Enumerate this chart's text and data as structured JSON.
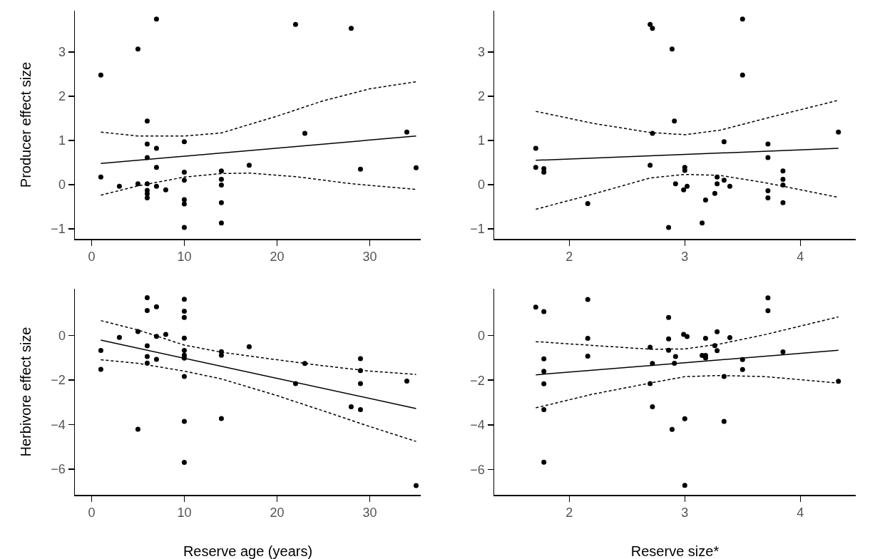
{
  "chart_data": [
    {
      "type": "scatter",
      "ylabel": "Producer effect size",
      "xlim": [
        -1.8,
        35.5
      ],
      "xticks": [
        0,
        10,
        20,
        30
      ],
      "ylim": [
        -1.23,
        3.94
      ],
      "yticks": [
        -1,
        0,
        1,
        2,
        3
      ],
      "series": [
        {
          "marker": "circle",
          "color": "#000000",
          "x": [
            1,
            1,
            3,
            5,
            5,
            6,
            6,
            6,
            6,
            6,
            6,
            6,
            7,
            7,
            7,
            7,
            8,
            10,
            10,
            10,
            10,
            10,
            10,
            14,
            14,
            14,
            14,
            14,
            17,
            22,
            23,
            28,
            29,
            34,
            35
          ],
          "values": [
            2.48,
            0.17,
            -0.04,
            3.07,
            0.02,
            1.44,
            0.92,
            0.61,
            0.02,
            -0.13,
            -0.21,
            -0.3,
            3.75,
            0.82,
            0.39,
            -0.04,
            -0.12,
            0.97,
            0.28,
            0.1,
            -0.34,
            -0.44,
            -0.97,
            0.31,
            0.12,
            -0.01,
            -0.41,
            -0.87,
            0.44,
            3.63,
            1.16,
            3.54,
            0.35,
            1.19,
            0.38
          ]
        },
        {
          "type": "line",
          "line_style": "solid",
          "color": "#000000",
          "x": [
            1,
            35
          ],
          "values": [
            0.48,
            1.1
          ]
        },
        {
          "type": "line",
          "line_style": "dashed",
          "color": "#000000",
          "x": [
            1,
            5,
            10,
            14,
            20,
            25,
            30,
            35
          ],
          "values": [
            1.19,
            1.1,
            1.1,
            1.17,
            1.55,
            1.9,
            2.17,
            2.33
          ]
        },
        {
          "type": "line",
          "line_style": "dashed",
          "color": "#000000",
          "x": [
            1,
            5,
            10,
            14,
            17,
            22,
            28,
            35
          ],
          "values": [
            -0.24,
            -0.03,
            0.17,
            0.25,
            0.26,
            0.18,
            0.02,
            -0.11
          ]
        }
      ]
    },
    {
      "type": "scatter",
      "xlim": [
        1.35,
        4.48
      ],
      "xticks": [
        2,
        3,
        4
      ],
      "ylim": [
        -1.23,
        3.94
      ],
      "yticks": [
        -1,
        0,
        1,
        2,
        3
      ],
      "series": [
        {
          "marker": "circle",
          "color": "#000000",
          "x": [
            1.71,
            1.71,
            1.78,
            1.78,
            2.16,
            2.7,
            2.72,
            2.7,
            2.72,
            2.89,
            2.91,
            2.86,
            2.92,
            2.99,
            3.0,
            3.0,
            3.02,
            3.15,
            3.18,
            3.26,
            3.28,
            3.28,
            3.34,
            3.34,
            3.39,
            3.5,
            3.5,
            3.72,
            3.72,
            3.72,
            3.72,
            3.85,
            3.85,
            3.85,
            3.85,
            4.33
          ],
          "values": [
            0.82,
            0.39,
            0.36,
            0.28,
            -0.43,
            3.63,
            3.54,
            0.44,
            1.16,
            3.07,
            1.44,
            -0.97,
            0.02,
            -0.12,
            0.39,
            0.32,
            -0.04,
            -0.87,
            -0.35,
            -0.2,
            0.17,
            0.02,
            0.97,
            0.1,
            -0.04,
            3.75,
            2.48,
            0.92,
            0.61,
            -0.14,
            -0.3,
            0.31,
            0.12,
            -0.01,
            -0.41,
            1.19
          ]
        },
        {
          "type": "line",
          "line_style": "solid",
          "color": "#000000",
          "x": [
            1.71,
            4.33
          ],
          "values": [
            0.55,
            0.82
          ]
        },
        {
          "type": "line",
          "line_style": "dashed",
          "color": "#000000",
          "x": [
            1.71,
            2.2,
            2.7,
            3.0,
            3.3,
            3.7,
            4.33
          ],
          "values": [
            1.66,
            1.39,
            1.18,
            1.13,
            1.23,
            1.5,
            1.91
          ]
        },
        {
          "type": "line",
          "line_style": "dashed",
          "color": "#000000",
          "x": [
            1.71,
            2.2,
            2.7,
            3.0,
            3.3,
            3.7,
            4.33
          ],
          "values": [
            -0.56,
            -0.22,
            0.15,
            0.23,
            0.21,
            0.04,
            -0.29
          ]
        }
      ]
    },
    {
      "type": "scatter",
      "ylabel": "Herbivore effect size",
      "xlabel": "Reserve age (years)",
      "xlim": [
        -1.8,
        35.5
      ],
      "xticks": [
        0,
        10,
        20,
        30
      ],
      "ylim": [
        -7.16,
        2.1
      ],
      "yticks": [
        -6,
        -4,
        -2,
        0
      ],
      "series": [
        {
          "marker": "circle",
          "color": "#000000",
          "x": [
            1,
            1,
            3,
            5,
            5,
            6,
            6,
            6,
            6,
            6,
            7,
            7,
            7,
            8,
            10,
            10,
            10,
            10,
            10,
            10,
            10,
            10,
            10,
            10,
            14,
            14,
            14,
            17,
            22,
            23,
            28,
            29,
            29,
            29,
            29,
            34,
            35
          ],
          "values": [
            -0.67,
            -1.52,
            -0.09,
            0.18,
            -4.21,
            1.7,
            1.12,
            -0.46,
            -0.94,
            -1.24,
            1.29,
            -0.04,
            -1.07,
            0.05,
            1.63,
            1.09,
            0.81,
            -0.12,
            -0.67,
            -0.89,
            -1.02,
            -1.84,
            -3.86,
            -5.7,
            -0.73,
            -0.89,
            -3.73,
            -0.5,
            -2.16,
            -1.26,
            -3.2,
            -1.04,
            -1.58,
            -2.16,
            -3.33,
            -2.05,
            -6.74
          ]
        },
        {
          "type": "line",
          "line_style": "solid",
          "color": "#000000",
          "x": [
            1,
            35
          ],
          "values": [
            -0.21,
            -3.28
          ]
        },
        {
          "type": "line",
          "line_style": "dashed",
          "color": "#000000",
          "x": [
            1,
            5,
            10,
            14,
            20,
            25,
            30,
            35
          ],
          "values": [
            0.67,
            0.25,
            -0.43,
            -0.75,
            -1.09,
            -1.36,
            -1.6,
            -1.75
          ]
        },
        {
          "type": "line",
          "line_style": "dashed",
          "color": "#000000",
          "x": [
            1,
            5,
            10,
            14,
            20,
            25,
            30,
            35
          ],
          "values": [
            -1.09,
            -1.25,
            -1.6,
            -1.95,
            -2.7,
            -3.39,
            -4.09,
            -4.76
          ]
        }
      ]
    },
    {
      "type": "scatter",
      "xlabel": "Reserve size*",
      "xlim": [
        1.35,
        4.48
      ],
      "xticks": [
        2,
        3,
        4
      ],
      "ylim": [
        -7.14,
        2.1
      ],
      "yticks": [
        -6,
        -4,
        -2,
        0
      ],
      "series": [
        {
          "marker": "circle",
          "color": "#000000",
          "x": [
            1.71,
            1.78,
            1.78,
            1.78,
            1.78,
            1.78,
            1.78,
            2.16,
            2.16,
            2.16,
            2.7,
            2.7,
            2.72,
            2.72,
            2.86,
            2.86,
            2.86,
            2.89,
            2.91,
            2.92,
            2.99,
            3.0,
            3.0,
            3.02,
            3.15,
            3.18,
            3.18,
            3.18,
            3.26,
            3.28,
            3.28,
            3.34,
            3.34,
            3.39,
            3.5,
            3.5,
            3.72,
            3.72,
            3.85,
            4.33
          ],
          "values": [
            1.28,
            1.08,
            -1.04,
            -1.6,
            -2.16,
            -3.32,
            -5.68,
            1.62,
            -0.12,
            -0.92,
            -0.52,
            -2.15,
            -1.25,
            -3.19,
            0.81,
            -0.15,
            -0.66,
            -4.21,
            -1.24,
            -0.94,
            0.05,
            -3.73,
            -6.72,
            -0.04,
            -0.89,
            -0.12,
            -0.89,
            -1.0,
            -0.45,
            0.17,
            -0.67,
            -1.83,
            -3.85,
            -0.09,
            -1.07,
            -1.52,
            1.69,
            1.12,
            -0.73,
            -2.05
          ]
        },
        {
          "type": "line",
          "line_style": "solid",
          "color": "#000000",
          "x": [
            1.71,
            4.33
          ],
          "values": [
            -1.76,
            -0.66
          ]
        },
        {
          "type": "line",
          "line_style": "dashed",
          "color": "#000000",
          "x": [
            1.71,
            2.2,
            2.7,
            3.0,
            3.3,
            3.7,
            4.33
          ],
          "values": [
            -0.27,
            -0.44,
            -0.61,
            -0.6,
            -0.38,
            0.05,
            0.84
          ]
        },
        {
          "type": "line",
          "line_style": "dashed",
          "color": "#000000",
          "x": [
            1.71,
            2.2,
            2.7,
            3.0,
            3.3,
            3.7,
            4.33
          ],
          "values": [
            -3.24,
            -2.63,
            -2.13,
            -1.84,
            -1.79,
            -1.84,
            -2.13
          ]
        }
      ]
    }
  ]
}
